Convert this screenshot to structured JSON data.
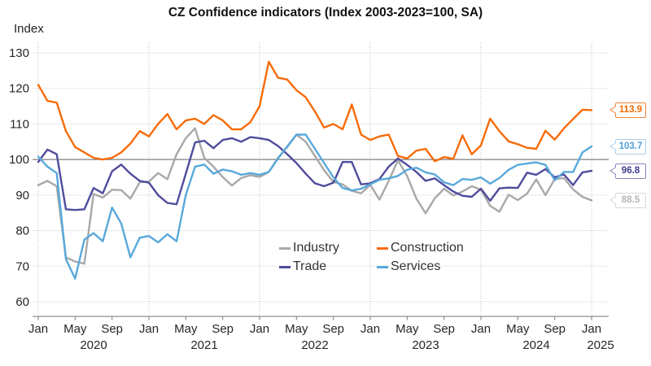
{
  "title": "CZ Confidence indicators (Index 2003-2023=100, SA)",
  "y_axis_unit": "Index",
  "chart_data": {
    "type": "line",
    "frequency": "monthly",
    "x_start": "2020-01",
    "x_end": "2025-01",
    "ylim": [
      60,
      130
    ],
    "y_ticks": [
      130,
      120,
      110,
      100,
      90,
      80,
      70,
      60
    ],
    "reference_line": 100,
    "grid": {
      "horizontal": true,
      "vertical_dotted_at_each_january": true
    },
    "month_tick_labels": [
      "Jan",
      "May",
      "Sep"
    ],
    "year_labels": [
      "2020",
      "2021",
      "2022",
      "2023",
      "2024",
      "2025"
    ],
    "legend_position": "inside-bottom-center",
    "legend_order": [
      "Industry",
      "Trade",
      "Construction",
      "Services"
    ],
    "callout_order": [
      "Construction",
      "Services",
      "Trade",
      "Industry"
    ],
    "series": [
      {
        "name": "Industry",
        "color": "#a8a8a8",
        "callout_border": "#d8d8d8",
        "callout_text": "#b5b5b5",
        "last_value_label": "88.5",
        "values": [
          92.8,
          94,
          92.5,
          72.5,
          71.3,
          70.7,
          90.3,
          89.3,
          91.5,
          91.4,
          89,
          93.6,
          93.8,
          96.2,
          94.5,
          101.5,
          106,
          108.8,
          100.5,
          98,
          95.1,
          92.7,
          94.8,
          95.6,
          95.1,
          96.5,
          100.5,
          103.5,
          107,
          105,
          101,
          97,
          93.7,
          93,
          91.2,
          90.5,
          92.9,
          88.7,
          94,
          99.8,
          95.4,
          89,
          84.9,
          89.1,
          91.8,
          89.9,
          91,
          92.5,
          91.5,
          87,
          85.3,
          90.1,
          88.6,
          90.4,
          94.4,
          90,
          94.5,
          94.8,
          91.6,
          89.5,
          88.5
        ]
      },
      {
        "name": "Construction",
        "color": "#f76b09",
        "callout_border": "#f08136",
        "callout_text": "#ee6a05",
        "last_value_label": "113.9",
        "values": [
          121,
          116.5,
          116,
          108,
          103.5,
          102,
          100.5,
          100,
          100.5,
          102,
          104.5,
          108,
          106.5,
          110,
          112.8,
          108.5,
          111,
          111.5,
          110,
          112.5,
          111,
          108.5,
          108.5,
          110.5,
          115,
          127.5,
          123,
          122.5,
          119.5,
          117.5,
          113.5,
          109,
          110,
          108.5,
          115.5,
          107,
          105.5,
          106.5,
          107,
          101,
          100.3,
          102.5,
          103,
          99.5,
          100.7,
          100.2,
          106.8,
          101.5,
          104,
          111.5,
          108,
          105.1,
          104.3,
          103.3,
          103,
          108.1,
          105.6,
          108.8,
          111.4,
          114,
          113.9
        ]
      },
      {
        "name": "Trade",
        "color": "#4f4c9d",
        "callout_border": "#8a87bb",
        "callout_text": "#3c3a8c",
        "last_value_label": "96.8",
        "values": [
          99.3,
          102.8,
          101.5,
          86,
          85.8,
          86,
          92,
          90.5,
          96.7,
          98.6,
          96,
          94,
          93.5,
          90,
          87.8,
          87.4,
          96,
          104.8,
          105.3,
          103.2,
          105.5,
          106,
          105,
          106.3,
          106,
          105.5,
          103.8,
          101.5,
          99,
          96,
          93.3,
          92.5,
          93.5,
          99.3,
          99.3,
          93,
          93.3,
          94.5,
          98,
          100.3,
          98.5,
          96.5,
          94,
          94.7,
          92.8,
          91,
          89.8,
          89.5,
          91.8,
          88.4,
          91.9,
          92.1,
          92,
          96.3,
          95.7,
          97.3,
          95,
          95.8,
          92.8,
          96.4,
          96.8
        ]
      },
      {
        "name": "Services",
        "color": "#58a8db",
        "callout_border": "#a9cfeb",
        "callout_text": "#4f9ed6",
        "last_value_label": "103.7",
        "values": [
          100.8,
          98,
          96.2,
          72,
          66.5,
          77.5,
          79.3,
          77,
          86.5,
          82,
          72.5,
          78,
          78.5,
          76.7,
          79,
          77,
          90,
          98,
          98.6,
          96,
          97.2,
          96.7,
          95.7,
          96.2,
          95.7,
          96.5,
          100.3,
          103.7,
          107,
          107,
          103,
          99,
          95,
          92,
          91.3,
          91.8,
          93,
          94.3,
          94.7,
          95.4,
          97.1,
          97.7,
          96.4,
          95.8,
          93.6,
          92.8,
          94.5,
          94.3,
          95,
          93.2,
          94.8,
          97.1,
          98.5,
          98.9,
          99.2,
          98.5,
          94.2,
          96.5,
          96.5,
          102,
          103.7
        ]
      }
    ]
  }
}
